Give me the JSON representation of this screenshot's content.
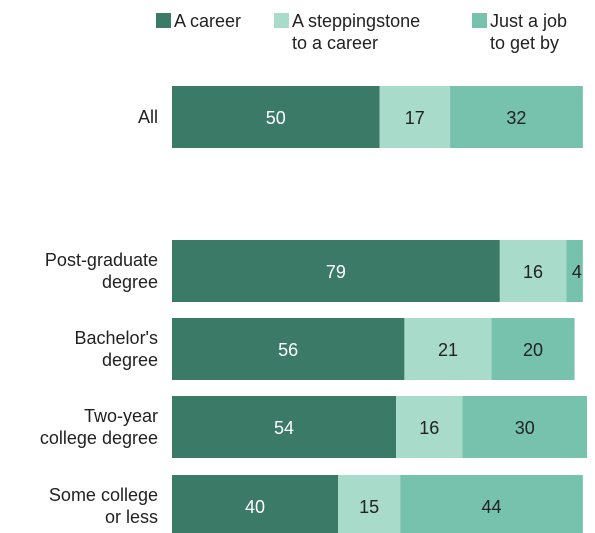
{
  "legend": [
    {
      "line1": "A career",
      "line2": "",
      "color": "#3a7a66"
    },
    {
      "line1": "A steppingstone",
      "line2": "to a career",
      "color": "#a8dbc9"
    },
    {
      "line1": "Just a job",
      "line2": "to get by",
      "color": "#76c2ad"
    }
  ],
  "chart_data": {
    "type": "bar",
    "orientation": "horizontal",
    "stacked": true,
    "title": "",
    "xlabel": "",
    "ylabel": "",
    "categories": [
      [
        "All"
      ],
      [
        "Post-graduate",
        "degree"
      ],
      [
        "Bachelor's",
        "degree"
      ],
      [
        "Two-year",
        "college degree"
      ],
      [
        "Some college",
        "or less"
      ]
    ],
    "series": [
      {
        "name": "A career",
        "color": "#3a7a66",
        "label_color": "#ffffff",
        "values": [
          50,
          79,
          56,
          54,
          40
        ]
      },
      {
        "name": "A steppingstone to a career",
        "color": "#a8dbc9",
        "label_color": "#222222",
        "values": [
          17,
          16,
          21,
          16,
          15
        ]
      },
      {
        "name": "Just a job to get by",
        "color": "#76c2ad",
        "label_color": "#222222",
        "values": [
          32,
          4,
          20,
          30,
          44
        ]
      }
    ],
    "xlim": [
      0,
      100
    ],
    "grid": false,
    "legend_position": "top"
  }
}
